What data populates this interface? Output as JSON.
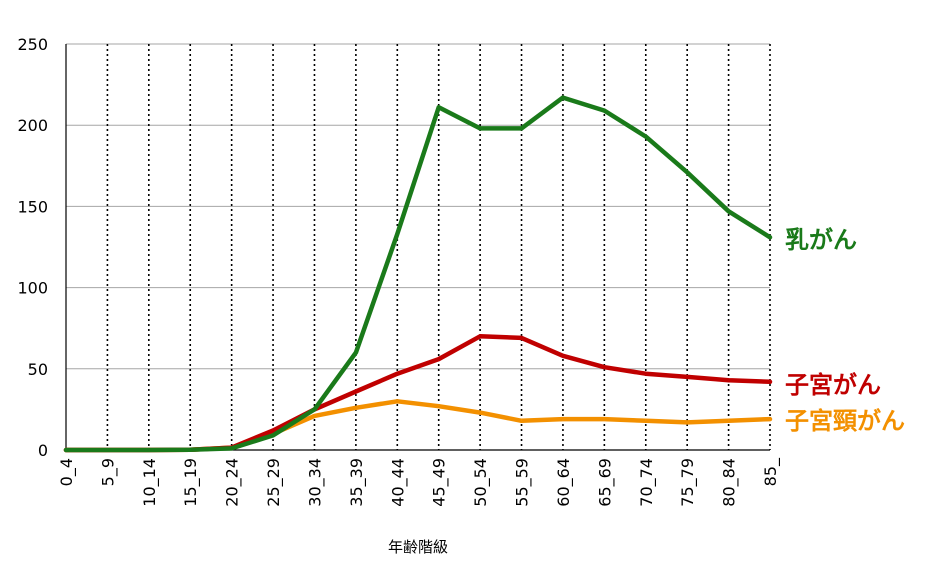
{
  "chart_data": {
    "type": "line",
    "xlabel": "年齢階級",
    "ylabel": "",
    "ylim": [
      0,
      250
    ],
    "yticks": [
      0,
      50,
      100,
      150,
      200,
      250
    ],
    "categories": [
      "0_4",
      "5_9",
      "10_14",
      "15_19",
      "20_24",
      "25_29",
      "30_34",
      "35_39",
      "40_44",
      "45_49",
      "50_54",
      "55_59",
      "60_64",
      "65_69",
      "70_74",
      "75_79",
      "80_84",
      "85_"
    ],
    "grid": {
      "horizontal": "solid",
      "vertical": "dotted"
    },
    "legend": "inline labels at right end of lines",
    "series": [
      {
        "name": "乳がん",
        "color": "#1a7a1a",
        "values": [
          0,
          0,
          0,
          0.2,
          1,
          9,
          25,
          60,
          133,
          211,
          198,
          198,
          217,
          209,
          193,
          171,
          147,
          131
        ]
      },
      {
        "name": "子宮がん",
        "color": "#c00000",
        "values": [
          0,
          0,
          0,
          0.2,
          1.5,
          12,
          25,
          36,
          47,
          56,
          70,
          69,
          58,
          51,
          47,
          45,
          43,
          42
        ]
      },
      {
        "name": "子宮頸がん",
        "color": "#f39000",
        "values": [
          0,
          0,
          0,
          0.2,
          1.5,
          10,
          21,
          26,
          30,
          27,
          23,
          18,
          19,
          19,
          18,
          17,
          18,
          19
        ]
      }
    ]
  }
}
